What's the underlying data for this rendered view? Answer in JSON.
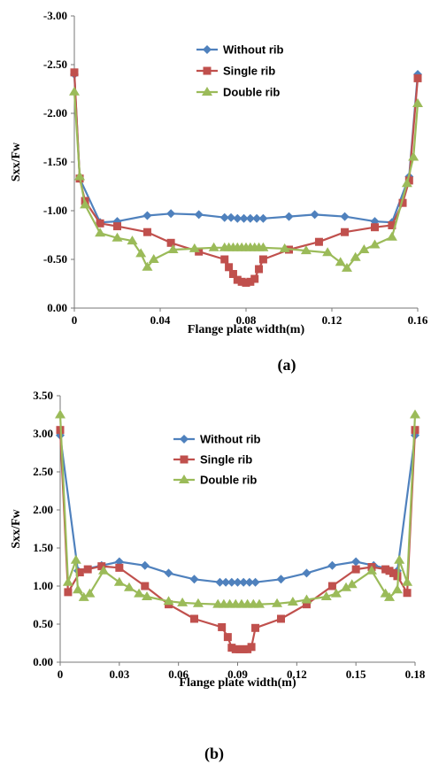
{
  "colors": {
    "without": "#4F81BD",
    "single": "#C0504D",
    "double": "#9BBB59"
  },
  "chart_data": [
    {
      "type": "line",
      "title": "",
      "xlabel": "Flange plate width(m)",
      "ylabel": "Sxx/Fw",
      "caption": "(a)",
      "xlim": [
        0,
        0.16
      ],
      "ylim": [
        0.0,
        -3.0
      ],
      "y_axis_reversed": true,
      "xticks": [
        0,
        0.04,
        0.08,
        0.12,
        0.16
      ],
      "xtick_labels": [
        "0",
        "0.04",
        "0.08",
        "0.12",
        "0.16"
      ],
      "yticks": [
        0.0,
        -0.5,
        -1.0,
        -1.5,
        -2.0,
        -2.5,
        -3.0
      ],
      "ytick_labels": [
        "0.00",
        "-0.50",
        "-1.00",
        "-1.50",
        "-2.00",
        "-2.50",
        "-3.00"
      ],
      "grid": false,
      "legend_position": "top-center",
      "series": [
        {
          "name": "Without rib",
          "marker": "diamond",
          "x": [
            0,
            0.0025,
            0.012,
            0.02,
            0.034,
            0.045,
            0.058,
            0.07,
            0.073,
            0.076,
            0.079,
            0.082,
            0.085,
            0.088,
            0.1,
            0.112,
            0.126,
            0.14,
            0.148,
            0.156,
            0.16
          ],
          "y": [
            -2.4,
            -1.33,
            -0.88,
            -0.89,
            -0.95,
            -0.97,
            -0.96,
            -0.93,
            -0.93,
            -0.92,
            -0.92,
            -0.92,
            -0.92,
            -0.92,
            -0.94,
            -0.96,
            -0.94,
            -0.89,
            -0.88,
            -1.35,
            -2.4
          ]
        },
        {
          "name": "Single rib",
          "marker": "square",
          "x": [
            0,
            0.0025,
            0.005,
            0.012,
            0.02,
            0.034,
            0.045,
            0.058,
            0.07,
            0.072,
            0.074,
            0.076,
            0.078,
            0.08,
            0.082,
            0.084,
            0.086,
            0.088,
            0.1,
            0.114,
            0.126,
            0.14,
            0.148,
            0.153,
            0.156,
            0.16
          ],
          "y": [
            -2.42,
            -1.33,
            -1.1,
            -0.87,
            -0.84,
            -0.78,
            -0.67,
            -0.58,
            -0.5,
            -0.42,
            -0.35,
            -0.29,
            -0.27,
            -0.26,
            -0.27,
            -0.3,
            -0.4,
            -0.5,
            -0.6,
            -0.68,
            -0.78,
            -0.83,
            -0.85,
            -1.08,
            -1.31,
            -2.36
          ]
        },
        {
          "name": "Double rib",
          "marker": "triangle",
          "x": [
            0,
            0.0025,
            0.005,
            0.012,
            0.02,
            0.027,
            0.031,
            0.034,
            0.037,
            0.046,
            0.056,
            0.065,
            0.07,
            0.072,
            0.074,
            0.076,
            0.078,
            0.08,
            0.082,
            0.084,
            0.086,
            0.088,
            0.098,
            0.108,
            0.118,
            0.124,
            0.127,
            0.131,
            0.135,
            0.14,
            0.148,
            0.155,
            0.158,
            0.16
          ],
          "y": [
            -2.22,
            -1.35,
            -1.06,
            -0.77,
            -0.72,
            -0.69,
            -0.56,
            -0.42,
            -0.5,
            -0.6,
            -0.61,
            -0.62,
            -0.62,
            -0.62,
            -0.62,
            -0.62,
            -0.62,
            -0.62,
            -0.62,
            -0.62,
            -0.62,
            -0.62,
            -0.61,
            -0.59,
            -0.57,
            -0.47,
            -0.41,
            -0.52,
            -0.6,
            -0.65,
            -0.73,
            -1.28,
            -1.55,
            -2.1
          ]
        }
      ]
    },
    {
      "type": "line",
      "title": "",
      "xlabel": "Flange plate width(m)",
      "ylabel": "Sxx/Fw",
      "caption": "(b)",
      "xlim": [
        0,
        0.18
      ],
      "ylim": [
        0.0,
        3.5
      ],
      "y_axis_reversed": false,
      "xticks": [
        0,
        0.03,
        0.06,
        0.09,
        0.12,
        0.15,
        0.18
      ],
      "xtick_labels": [
        "0",
        "0.03",
        "0.06",
        "0.09",
        "0.12",
        "0.15",
        "0.18"
      ],
      "yticks": [
        0.0,
        0.5,
        1.0,
        1.5,
        2.0,
        2.5,
        3.0,
        3.5
      ],
      "ytick_labels": [
        "0.00",
        "0.50",
        "1.00",
        "1.50",
        "2.00",
        "2.50",
        "3.00",
        "3.50"
      ],
      "grid": false,
      "legend_position": "center",
      "series": [
        {
          "name": "Without rib",
          "marker": "diamond",
          "x": [
            0,
            0.009,
            0.021,
            0.03,
            0.043,
            0.055,
            0.068,
            0.081,
            0.084,
            0.087,
            0.09,
            0.093,
            0.096,
            0.099,
            0.112,
            0.125,
            0.138,
            0.15,
            0.159,
            0.171,
            0.18
          ],
          "y": [
            2.98,
            1.2,
            1.27,
            1.32,
            1.27,
            1.17,
            1.09,
            1.05,
            1.05,
            1.05,
            1.05,
            1.05,
            1.05,
            1.05,
            1.09,
            1.17,
            1.27,
            1.32,
            1.27,
            1.2,
            2.98
          ]
        },
        {
          "name": "Single rib",
          "marker": "square",
          "x": [
            0,
            0.004,
            0.01,
            0.014,
            0.021,
            0.03,
            0.043,
            0.055,
            0.068,
            0.082,
            0.085,
            0.087,
            0.089,
            0.091,
            0.093,
            0.095,
            0.097,
            0.099,
            0.112,
            0.125,
            0.138,
            0.15,
            0.158,
            0.165,
            0.167,
            0.169,
            0.171,
            0.176,
            0.18
          ],
          "y": [
            3.05,
            0.92,
            1.18,
            1.22,
            1.26,
            1.24,
            1.0,
            0.76,
            0.57,
            0.46,
            0.33,
            0.19,
            0.17,
            0.17,
            0.17,
            0.17,
            0.2,
            0.45,
            0.57,
            0.76,
            1.0,
            1.22,
            1.25,
            1.22,
            1.2,
            1.17,
            1.13,
            0.91,
            3.05
          ]
        },
        {
          "name": "Double rib",
          "marker": "triangle",
          "x": [
            0,
            0.004,
            0.008,
            0.009,
            0.012,
            0.015,
            0.022,
            0.03,
            0.035,
            0.04,
            0.044,
            0.055,
            0.062,
            0.07,
            0.08,
            0.083,
            0.086,
            0.089,
            0.092,
            0.095,
            0.098,
            0.101,
            0.11,
            0.118,
            0.125,
            0.135,
            0.14,
            0.145,
            0.148,
            0.158,
            0.165,
            0.167,
            0.171,
            0.172,
            0.176,
            0.18
          ],
          "y": [
            3.25,
            1.05,
            1.34,
            0.95,
            0.85,
            0.9,
            1.2,
            1.05,
            0.98,
            0.9,
            0.86,
            0.8,
            0.78,
            0.77,
            0.76,
            0.76,
            0.76,
            0.76,
            0.76,
            0.76,
            0.76,
            0.76,
            0.77,
            0.79,
            0.82,
            0.86,
            0.9,
            0.98,
            1.02,
            1.2,
            0.9,
            0.85,
            0.95,
            1.34,
            1.05,
            3.25
          ]
        }
      ]
    }
  ]
}
